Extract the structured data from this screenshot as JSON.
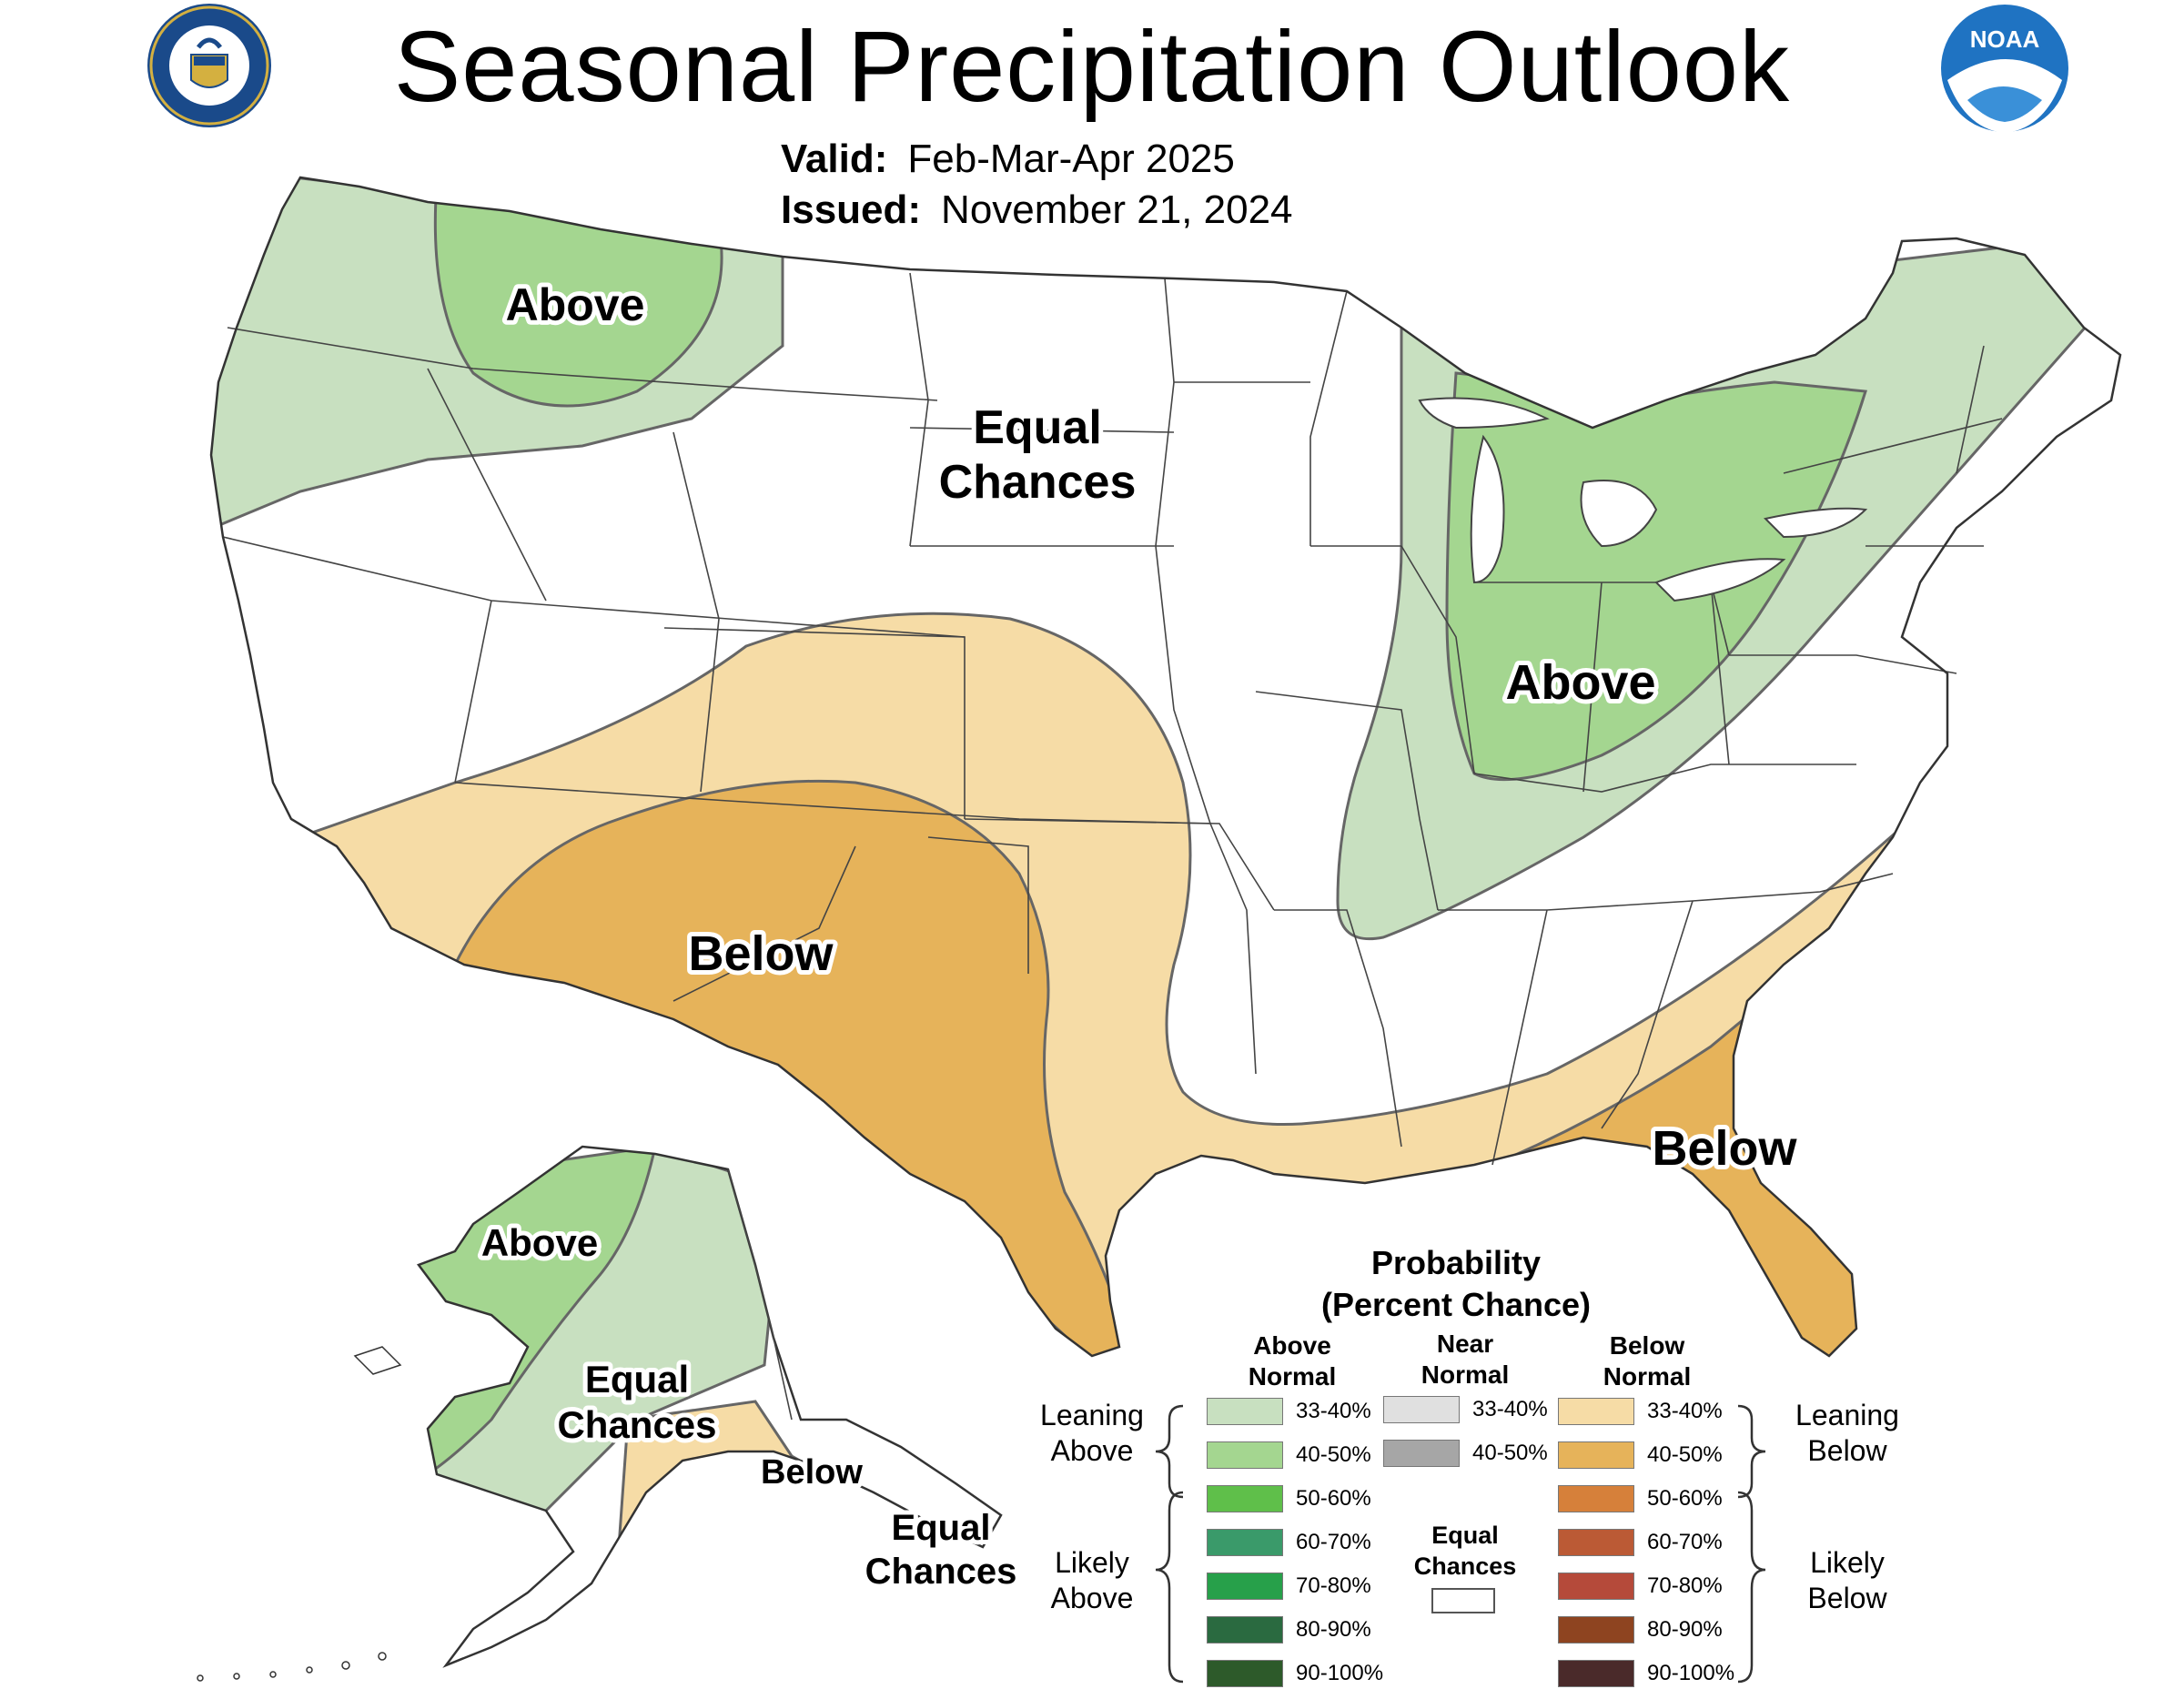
{
  "title": "Seasonal Precipitation Outlook",
  "valid": {
    "label": "Valid:",
    "value": "Feb-Mar-Apr 2025"
  },
  "issued": {
    "label": "Issued:",
    "value": "November 21, 2024"
  },
  "logos": {
    "left": "department-of-commerce-seal",
    "right": "noaa-logo",
    "right_text": "NOAA"
  },
  "colors": {
    "land": "#ffffff",
    "border": "#444444",
    "above_33_40": "#c8e0c0",
    "above_40_50": "#a4d690",
    "below_33_40": "#f6dca6",
    "below_40_50": "#e6b35a"
  },
  "map_labels": {
    "nw_above": "Above",
    "central_ec_1": "Equal",
    "central_ec_2": "Chances",
    "sw_below": "Below",
    "east_above": "Above",
    "se_below": "Below",
    "ak_above": "Above",
    "ak_ec_1": "Equal",
    "ak_ec_2": "Chances",
    "ak_below": "Below",
    "ak_ec2_1": "Equal",
    "ak_ec2_2": "Chances"
  },
  "legend": {
    "title_1": "Probability",
    "title_2": "(Percent Chance)",
    "above_head_1": "Above",
    "above_head_2": "Normal",
    "near_head_1": "Near",
    "near_head_2": "Normal",
    "below_head_1": "Below",
    "below_head_2": "Normal",
    "leaning_above_1": "Leaning",
    "leaning_above_2": "Above",
    "likely_above_1": "Likely",
    "likely_above_2": "Above",
    "leaning_below_1": "Leaning",
    "leaning_below_2": "Below",
    "likely_below_1": "Likely",
    "likely_below_2": "Below",
    "equal_chances_1": "Equal",
    "equal_chances_2": "Chances",
    "above": [
      {
        "range": "33-40%",
        "color": "#c8e0c0"
      },
      {
        "range": "40-50%",
        "color": "#a4d690"
      },
      {
        "range": "50-60%",
        "color": "#5fbf4a"
      },
      {
        "range": "60-70%",
        "color": "#3a9a6a"
      },
      {
        "range": "70-80%",
        "color": "#27a04a"
      },
      {
        "range": "80-90%",
        "color": "#2a6a40"
      },
      {
        "range": "90-100%",
        "color": "#2d5a2a"
      }
    ],
    "near": [
      {
        "range": "33-40%",
        "color": "#e0e0e0"
      },
      {
        "range": "40-50%",
        "color": "#a6a6a6"
      }
    ],
    "below": [
      {
        "range": "33-40%",
        "color": "#f6dca6"
      },
      {
        "range": "40-50%",
        "color": "#e6b35a"
      },
      {
        "range": "50-60%",
        "color": "#d6803a"
      },
      {
        "range": "60-70%",
        "color": "#bb5a35"
      },
      {
        "range": "70-80%",
        "color": "#b54a3a"
      },
      {
        "range": "80-90%",
        "color": "#8e4420"
      },
      {
        "range": "90-100%",
        "color": "#4a2a2a"
      }
    ]
  }
}
